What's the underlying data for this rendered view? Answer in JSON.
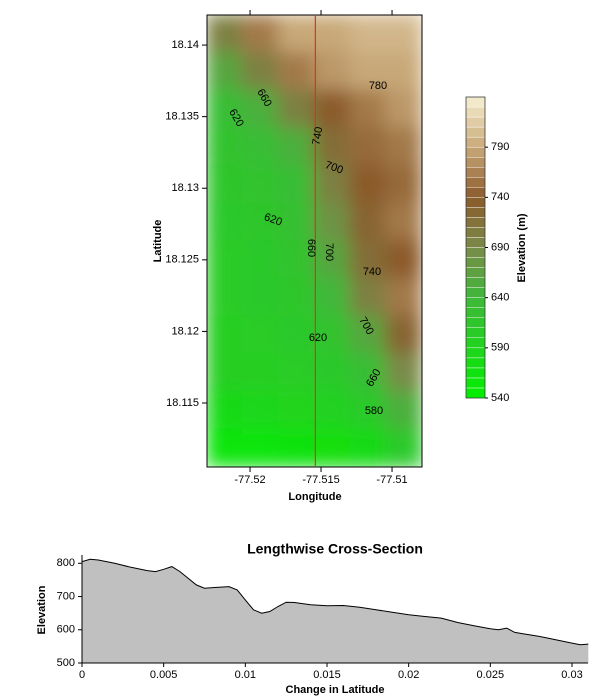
{
  "chart_data": [
    {
      "type": "contour",
      "xlabel": "Longitude",
      "ylabel": "Latitude",
      "colorbar_label": "Elevation (m)",
      "xlim": [
        -77.52303,
        -77.50789
      ],
      "ylim": [
        18.11053,
        18.1421
      ],
      "xticks": [
        -77.52,
        -77.515,
        -77.51
      ],
      "yticks": [
        18.115,
        18.12,
        18.125,
        18.13,
        18.135,
        18.14
      ],
      "z": [
        [
          700,
          760,
          790,
          790,
          800,
          800
        ],
        [
          660,
          700,
          760,
          780,
          790,
          790
        ],
        [
          630,
          650,
          700,
          740,
          760,
          780
        ],
        [
          620,
          630,
          650,
          720,
          750,
          760
        ],
        [
          615,
          620,
          630,
          700,
          740,
          750
        ],
        [
          610,
          615,
          625,
          680,
          730,
          760
        ],
        [
          605,
          610,
          620,
          660,
          720,
          740
        ],
        [
          605,
          610,
          615,
          640,
          700,
          760
        ],
        [
          600,
          605,
          610,
          620,
          660,
          730
        ],
        [
          600,
          600,
          605,
          610,
          630,
          690
        ],
        [
          580,
          585,
          590,
          595,
          610,
          650
        ],
        [
          560,
          560,
          565,
          570,
          580,
          610
        ]
      ],
      "clim": [
        540,
        840
      ],
      "level_step": 10,
      "cticks": [
        540,
        590,
        640,
        690,
        740,
        790
      ],
      "colorscale": [
        [
          540,
          "#00f000"
        ],
        [
          640,
          "#3fb83a"
        ],
        [
          690,
          "#7a8a48"
        ],
        [
          740,
          "#8b5a2b"
        ],
        [
          790,
          "#c8a878"
        ],
        [
          840,
          "#f6f0d2"
        ]
      ],
      "transect_lon": -77.5154,
      "transect_color": "#e03020",
      "contour_labels": [
        "780",
        "660",
        "620",
        "740",
        "700",
        "620",
        "660",
        "700",
        "740",
        "700",
        "620",
        "660",
        "580"
      ]
    },
    {
      "type": "area",
      "title": "Lengthwise Cross-Section",
      "xlabel": "Change in Latitude",
      "ylabel": "Elevation",
      "x": [
        0,
        0.0005,
        0.001,
        0.002,
        0.003,
        0.004,
        0.0045,
        0.005,
        0.0055,
        0.006,
        0.007,
        0.0075,
        0.008,
        0.009,
        0.0095,
        0.01,
        0.0105,
        0.011,
        0.0115,
        0.012,
        0.0125,
        0.013,
        0.014,
        0.015,
        0.016,
        0.017,
        0.018,
        0.019,
        0.02,
        0.021,
        0.022,
        0.023,
        0.024,
        0.025,
        0.0255,
        0.026,
        0.0265,
        0.027,
        0.028,
        0.029,
        0.03,
        0.0305,
        0.031
      ],
      "values": [
        805,
        812,
        810,
        800,
        788,
        778,
        775,
        782,
        790,
        775,
        735,
        725,
        727,
        730,
        720,
        690,
        660,
        650,
        655,
        670,
        683,
        682,
        675,
        672,
        673,
        668,
        660,
        653,
        645,
        640,
        635,
        622,
        612,
        603,
        600,
        605,
        592,
        588,
        580,
        570,
        560,
        555,
        557
      ],
      "color": "#c0c0c0",
      "xlim": [
        0,
        0.03098
      ],
      "ylim": [
        500,
        825
      ],
      "xticks": [
        0,
        0.005,
        0.01,
        0.015,
        0.02,
        0.025,
        0.03
      ],
      "yticks": [
        500,
        600,
        700,
        800
      ]
    }
  ]
}
